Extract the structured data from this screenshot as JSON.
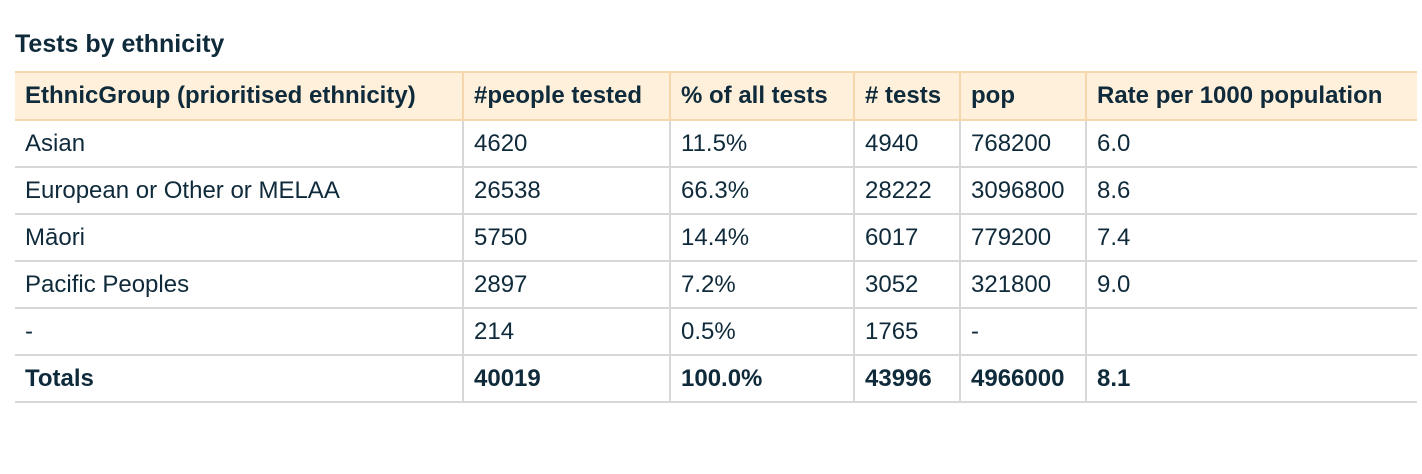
{
  "title": "Tests by ethnicity",
  "table": {
    "headers": [
      "EthnicGroup (prioritised ethnicity)",
      "#people tested",
      "% of all tests",
      "# tests",
      "pop",
      "Rate per 1000 population"
    ],
    "rows": [
      [
        "Asian",
        "4620",
        "11.5%",
        "4940",
        "768200",
        "6.0"
      ],
      [
        "European or Other or MELAA",
        "26538",
        "66.3%",
        "28222",
        "3096800",
        "8.6"
      ],
      [
        "Māori",
        "5750",
        "14.4%",
        "6017",
        "779200",
        "7.4"
      ],
      [
        "Pacific Peoples",
        "2897",
        "7.2%",
        "3052",
        "321800",
        "9.0"
      ],
      [
        "-",
        "214",
        "0.5%",
        "1765",
        "-",
        ""
      ],
      [
        "Totals",
        "40019",
        "100.0%",
        "43996",
        "4966000",
        "8.1"
      ]
    ]
  },
  "colors": {
    "header_bg": "#fff0db",
    "header_border": "#f6d6ad",
    "grid": "#d7d7d7",
    "text": "#0f2a3a"
  }
}
